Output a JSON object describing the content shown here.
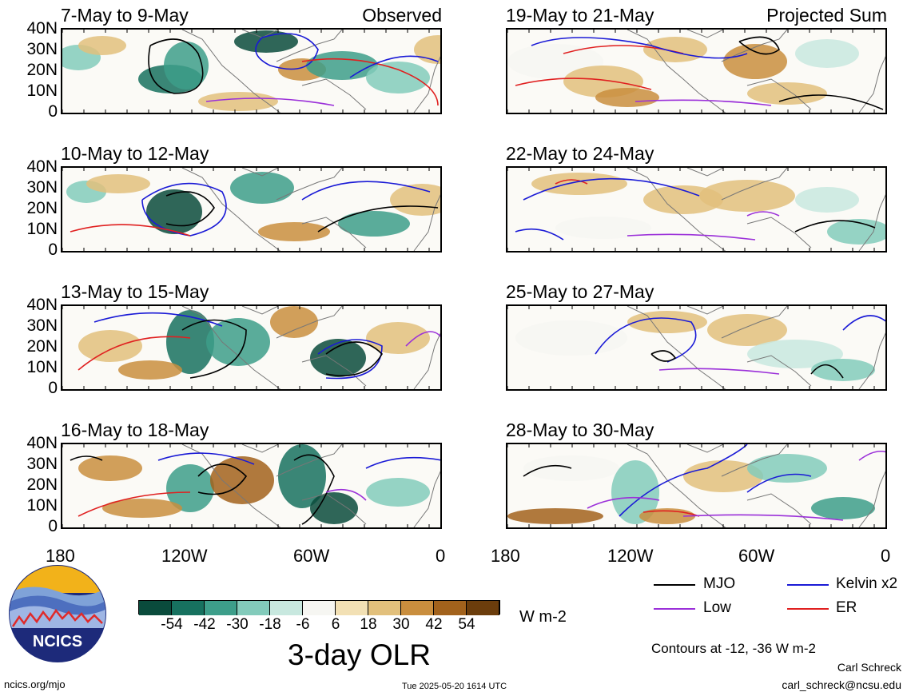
{
  "panels": [
    {
      "title": "7-May to 9-May",
      "tag": "Observed"
    },
    {
      "title": "19-May to 21-May",
      "tag": "Projected Sum"
    },
    {
      "title": "10-May to 12-May",
      "tag": ""
    },
    {
      "title": "22-May to 24-May",
      "tag": ""
    },
    {
      "title": "13-May to 15-May",
      "tag": ""
    },
    {
      "title": "25-May to 27-May",
      "tag": ""
    },
    {
      "title": "16-May to 18-May",
      "tag": ""
    },
    {
      "title": "28-May to 30-May",
      "tag": ""
    }
  ],
  "lat_labels": [
    "40N",
    "30N",
    "20N",
    "10N",
    "0"
  ],
  "lon_labels": [
    "180",
    "120W",
    "60W",
    "0"
  ],
  "colorbar": {
    "colors": [
      "#0a4b3c",
      "#17715f",
      "#3d9e8a",
      "#83cbbb",
      "#c8e8df",
      "#f6f6f2",
      "#f2e0b4",
      "#e2c07c",
      "#c98e3e",
      "#a2621c",
      "#6b3d0c"
    ],
    "labels": [
      "-54",
      "-42",
      "-30",
      "-18",
      "-6",
      "6",
      "18",
      "30",
      "42",
      "54"
    ],
    "units": "W m-2",
    "title": "3-day OLR"
  },
  "legend": {
    "items": [
      {
        "label": "MJO",
        "color": "#000000"
      },
      {
        "label": "Kelvin x2",
        "color": "#1a1ad6"
      },
      {
        "label": "Low",
        "color": "#9b30d9"
      },
      {
        "label": "ER",
        "color": "#e02020"
      }
    ],
    "note": "Contours at -12, -36 W m-2"
  },
  "logo_text": "NCICS",
  "footer": {
    "url": "ncics.org/mjo",
    "timestamp": "Tue 2025-05-20 1614 UTC",
    "author": "Carl Schreck",
    "email": "carl_schreck@ncsu.edu"
  }
}
